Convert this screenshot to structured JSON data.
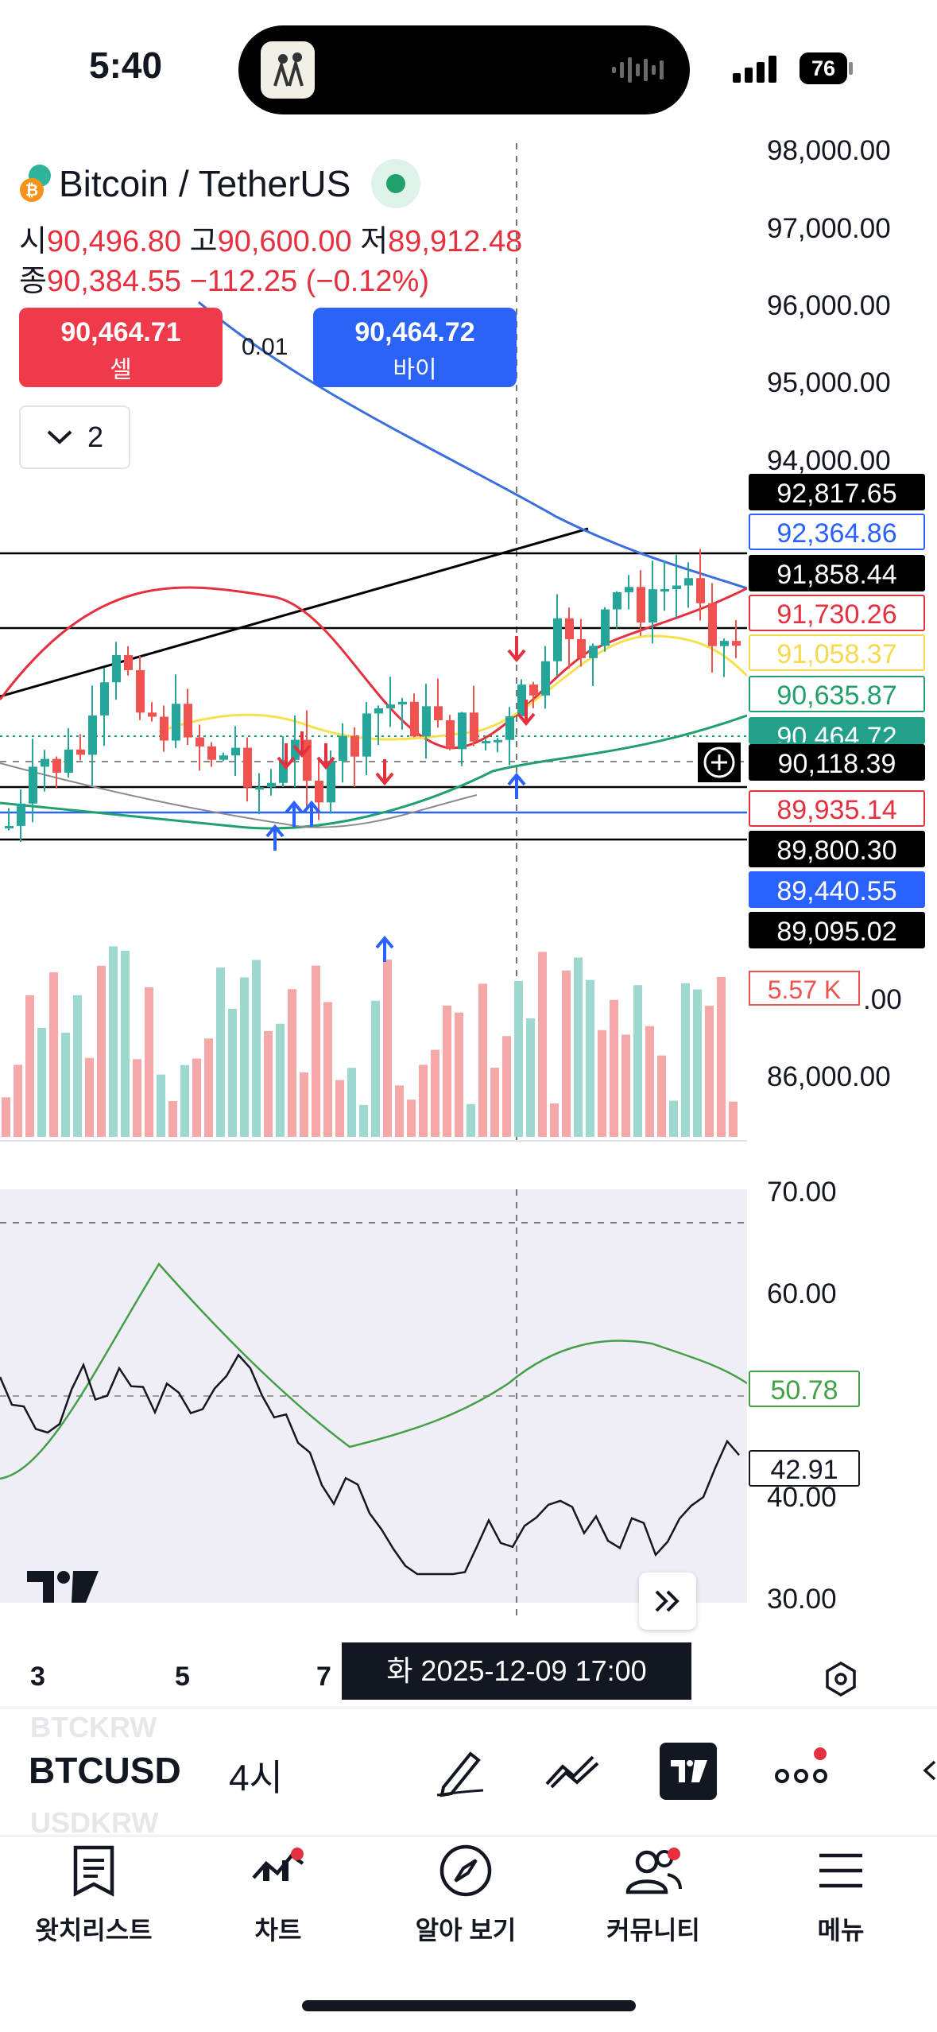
{
  "status": {
    "time": "5:40",
    "battery": "76"
  },
  "header": {
    "title": "Bitcoin / TetherUS",
    "ohlc": {
      "open_label": "시",
      "open": "90,496.80",
      "high_label": "고",
      "high": "90,600.00",
      "low_label": "저",
      "low": "89,912.48",
      "close_label": "종",
      "close": "90,384.55",
      "change": "−112.25 (−0.12%)"
    },
    "sell": {
      "price": "90,464.71",
      "label": "셀"
    },
    "spread": "0.01",
    "buy": {
      "price": "90,464.72",
      "label": "바이"
    },
    "collapse_count": "2"
  },
  "price_axis": [
    "98,000.00",
    "97,000.00",
    "96,000.00",
    "95,000.00",
    "94,000.00",
    "86,000.00"
  ],
  "price_tags": [
    {
      "text": "92,817.65",
      "bg": "#000000",
      "fg": "#ffffff",
      "border": "#000000"
    },
    {
      "text": "92,364.86",
      "bg": "#ffffff",
      "fg": "#2962ff",
      "border": "#2962ff"
    },
    {
      "text": "91,858.44",
      "bg": "#000000",
      "fg": "#ffffff",
      "border": "#000000"
    },
    {
      "text": "91,730.26",
      "bg": "#ffffff",
      "fg": "#e5303f",
      "border": "#e5303f"
    },
    {
      "text": "91,058.37",
      "bg": "#ffffff",
      "fg": "#f5d94e",
      "border": "#f5d94e"
    },
    {
      "text": "90,635.87",
      "bg": "#ffffff",
      "fg": "#22a06b",
      "border": "#22a06b"
    },
    {
      "text": "90,464.72",
      "bg": "#22a08a",
      "fg": "#ffffff",
      "border": "#22a08a"
    },
    {
      "text": "90,118.39",
      "bg": "#000000",
      "fg": "#ffffff",
      "border": "#000000"
    },
    {
      "text": "89,935.14",
      "bg": "#ffffff",
      "fg": "#e5303f",
      "border": "#e5303f"
    },
    {
      "text": "89,800.30",
      "bg": "#000000",
      "fg": "#ffffff",
      "border": "#000000"
    },
    {
      "text": "89,440.55",
      "bg": "#2962ff",
      "fg": "#ffffff",
      "border": "#2962ff"
    },
    {
      "text": "89,095.02",
      "bg": "#000000",
      "fg": "#ffffff",
      "border": "#000000"
    }
  ],
  "volume_tag": "5.57 K",
  "rsi": {
    "axis": [
      "70.00",
      "60.00",
      "40.00",
      "30.00"
    ],
    "ma_value": "50.78",
    "rsi_value": "42.91"
  },
  "time_axis": [
    "3",
    "5",
    "7"
  ],
  "crosshair_date": "화 2025-12-09   17:00",
  "toolbar": {
    "prev_symbol": "BTCKRW",
    "symbol": "BTCUSD",
    "next_symbol": "USDKRW",
    "interval": "4시"
  },
  "tabs": [
    {
      "label": "왓치리스트",
      "icon": "watchlist-icon"
    },
    {
      "label": "차트",
      "icon": "chart-icon"
    },
    {
      "label": "알아 보기",
      "icon": "compass-icon"
    },
    {
      "label": "커뮤니티",
      "icon": "community-icon"
    },
    {
      "label": "메뉴",
      "icon": "menu-icon"
    }
  ],
  "colors": {
    "up": "#26a69a",
    "down": "#ef5350",
    "sell": "#ef3a4b",
    "buy": "#2a63f5",
    "accent": "#131722"
  }
}
